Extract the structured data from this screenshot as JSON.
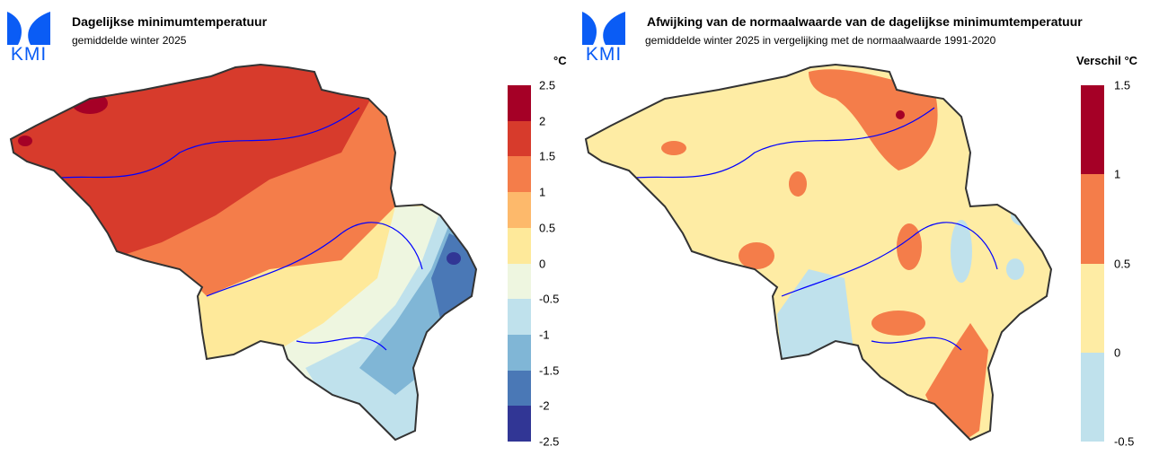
{
  "left": {
    "logo": "KMI",
    "title": "Dagelijkse minimumtemperatuur",
    "subtitle": "gemiddelde winter 2025",
    "legend": {
      "unit": "°C",
      "labels": [
        "2.5",
        "2",
        "1.5",
        "1",
        "0.5",
        "0",
        "-0.5",
        "-1",
        "-1.5",
        "-2",
        "-2.5"
      ],
      "colors": [
        "#a50026",
        "#d73b2c",
        "#f47d4a",
        "#fdb96b",
        "#fee99a",
        "#eef6e0",
        "#bfe1ec",
        "#80b6d6",
        "#4a78b6",
        "#313695"
      ]
    }
  },
  "right": {
    "logo": "KMI",
    "title": "Afwijking van de normaalwaarde van de dagelijkse minimumtemperatuur",
    "subtitle": "gemiddelde winter 2025 in vergelijking met de normaalwaarde 1991-2020",
    "legend": {
      "unit": "Verschil °C",
      "labels": [
        "1.5",
        "1",
        "0.5",
        "0",
        "-0.5"
      ],
      "colors": [
        "#a50026",
        "#f47d4a",
        "#feeca4",
        "#bfe1ec"
      ]
    }
  }
}
